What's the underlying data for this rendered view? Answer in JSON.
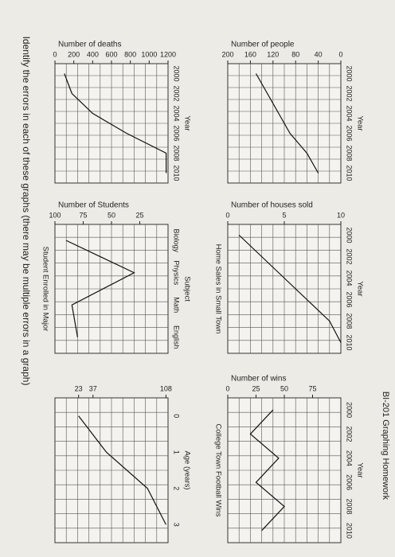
{
  "header": {
    "course": "BI-201 Graphing Homework",
    "title": "Identify the errors in each of these graphs (there may be multiple errors in a graph)"
  },
  "graphs": [
    {
      "value_label": "Number of deaths",
      "ylim": [
        0,
        1200
      ],
      "yticks": [
        0,
        200,
        400,
        600,
        800,
        1000,
        1200
      ],
      "categories": [
        "2000",
        "2002",
        "2004",
        "2006",
        "2008",
        "2010"
      ],
      "category_label": "Year",
      "values": [
        100,
        180,
        400,
        760,
        1180,
        1180
      ]
    },
    {
      "value_label": "Number of people",
      "ylim": [
        200,
        0
      ],
      "yticks": [
        200,
        160,
        120,
        80,
        40,
        0
      ],
      "categories": [
        "2000",
        "2002",
        "2004",
        "2006",
        "2008",
        "2010"
      ],
      "category_label": "Year",
      "values": [
        150,
        130,
        110,
        90,
        60,
        40
      ]
    },
    {
      "title": "Student Enrolled in Major",
      "value_label": "Number of Students",
      "ylim": [
        100,
        0
      ],
      "yticks": [
        100,
        75,
        50,
        25
      ],
      "categories": [
        "Biology",
        "Physics",
        "Math",
        "English"
      ],
      "category_label": "Subject",
      "values": [
        90,
        30,
        85,
        80
      ]
    },
    {
      "title": "Home Sales in Small Town",
      "value_label": "Number of houses sold",
      "ylim": [
        0,
        10
      ],
      "yticks": [
        0,
        5,
        10
      ],
      "categories": [
        "2000",
        "2002",
        "2004",
        "2006",
        "2008",
        "2010"
      ],
      "category_label": "Year",
      "values": [
        1,
        3,
        5,
        7,
        9,
        10
      ]
    },
    {
      "ylim": [
        0,
        110
      ],
      "yticks": [
        23,
        37,
        108
      ],
      "categories": [
        "0",
        "1",
        "2",
        "3"
      ],
      "category_label": "Age (years)",
      "values": [
        23,
        50,
        90,
        108
      ]
    },
    {
      "title": "College Town Football Wins",
      "value_label": "Number of wins",
      "ylim": [
        0,
        100
      ],
      "yticks": [
        0,
        25,
        50,
        75
      ],
      "categories": [
        "2000",
        "2002",
        "2004",
        "2006",
        "2008",
        "2010"
      ],
      "category_label": "Year",
      "values": [
        40,
        20,
        45,
        25,
        50,
        30
      ]
    }
  ]
}
